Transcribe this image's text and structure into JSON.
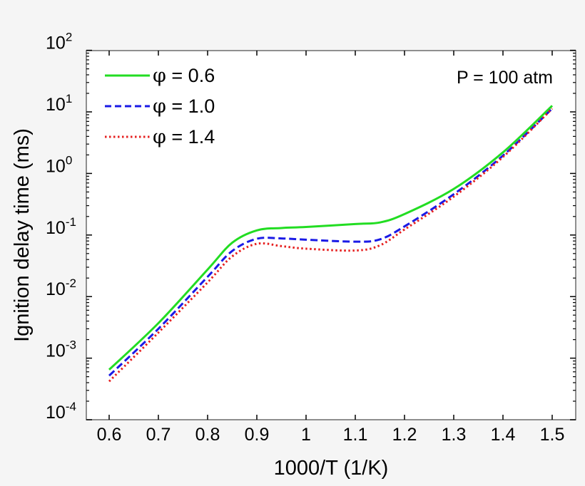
{
  "chart_data": {
    "type": "line",
    "title": "",
    "xlabel": "1000/T (1/K)",
    "ylabel": "Ignition delay time (ms)",
    "xlim": [
      0.55,
      1.53
    ],
    "ylim": [
      0.0001,
      100
    ],
    "yscale": "log",
    "grid": false,
    "legend_position": "upper left",
    "x_ticks": [
      0.6,
      0.7,
      0.8,
      0.9,
      1.0,
      1.1,
      1.2,
      1.3,
      1.4,
      1.5
    ],
    "x_tick_labels": [
      "0.6",
      "0.7",
      "0.8",
      "0.9",
      "1",
      "1.1",
      "1.2",
      "1.3",
      "1.4",
      "1.5"
    ],
    "y_ticks": [
      -4,
      -3,
      -2,
      -1,
      0,
      1,
      2
    ],
    "y_tick_labels": [
      "10^-4",
      "10^-3",
      "10^-2",
      "10^-1",
      "10^0",
      "10^1",
      "10^2"
    ],
    "annotations": [
      {
        "text": "P = 100 atm",
        "position": "upper right"
      }
    ],
    "x": [
      0.6,
      0.7,
      0.8,
      0.85,
      0.9,
      0.95,
      1.0,
      1.1,
      1.15,
      1.2,
      1.3,
      1.4,
      1.5
    ],
    "series": [
      {
        "name": "φ = 0.6",
        "color": "#22dd22",
        "style": "solid",
        "values": [
          0.00065,
          0.0037,
          0.0275,
          0.075,
          0.119,
          0.13,
          0.135,
          0.151,
          0.16,
          0.219,
          0.56,
          2.2,
          12.6
        ]
      },
      {
        "name": "φ = 1.0",
        "color": "#1a1ae6",
        "style": "dashed",
        "values": [
          0.00052,
          0.003,
          0.021,
          0.055,
          0.087,
          0.088,
          0.084,
          0.078,
          0.085,
          0.138,
          0.46,
          1.95,
          11.3
        ]
      },
      {
        "name": "φ = 1.4",
        "color": "#e62020",
        "style": "dotted",
        "values": [
          0.00042,
          0.0026,
          0.017,
          0.045,
          0.072,
          0.066,
          0.06,
          0.056,
          0.068,
          0.123,
          0.42,
          1.85,
          11.3
        ]
      }
    ]
  },
  "legend": {
    "items": [
      {
        "symbol": "φ",
        "label": " = 0.6"
      },
      {
        "symbol": "φ",
        "label": " = 1.0"
      },
      {
        "symbol": "φ",
        "label": " = 1.4"
      }
    ]
  },
  "annotation": {
    "text": "P = 100 atm"
  }
}
